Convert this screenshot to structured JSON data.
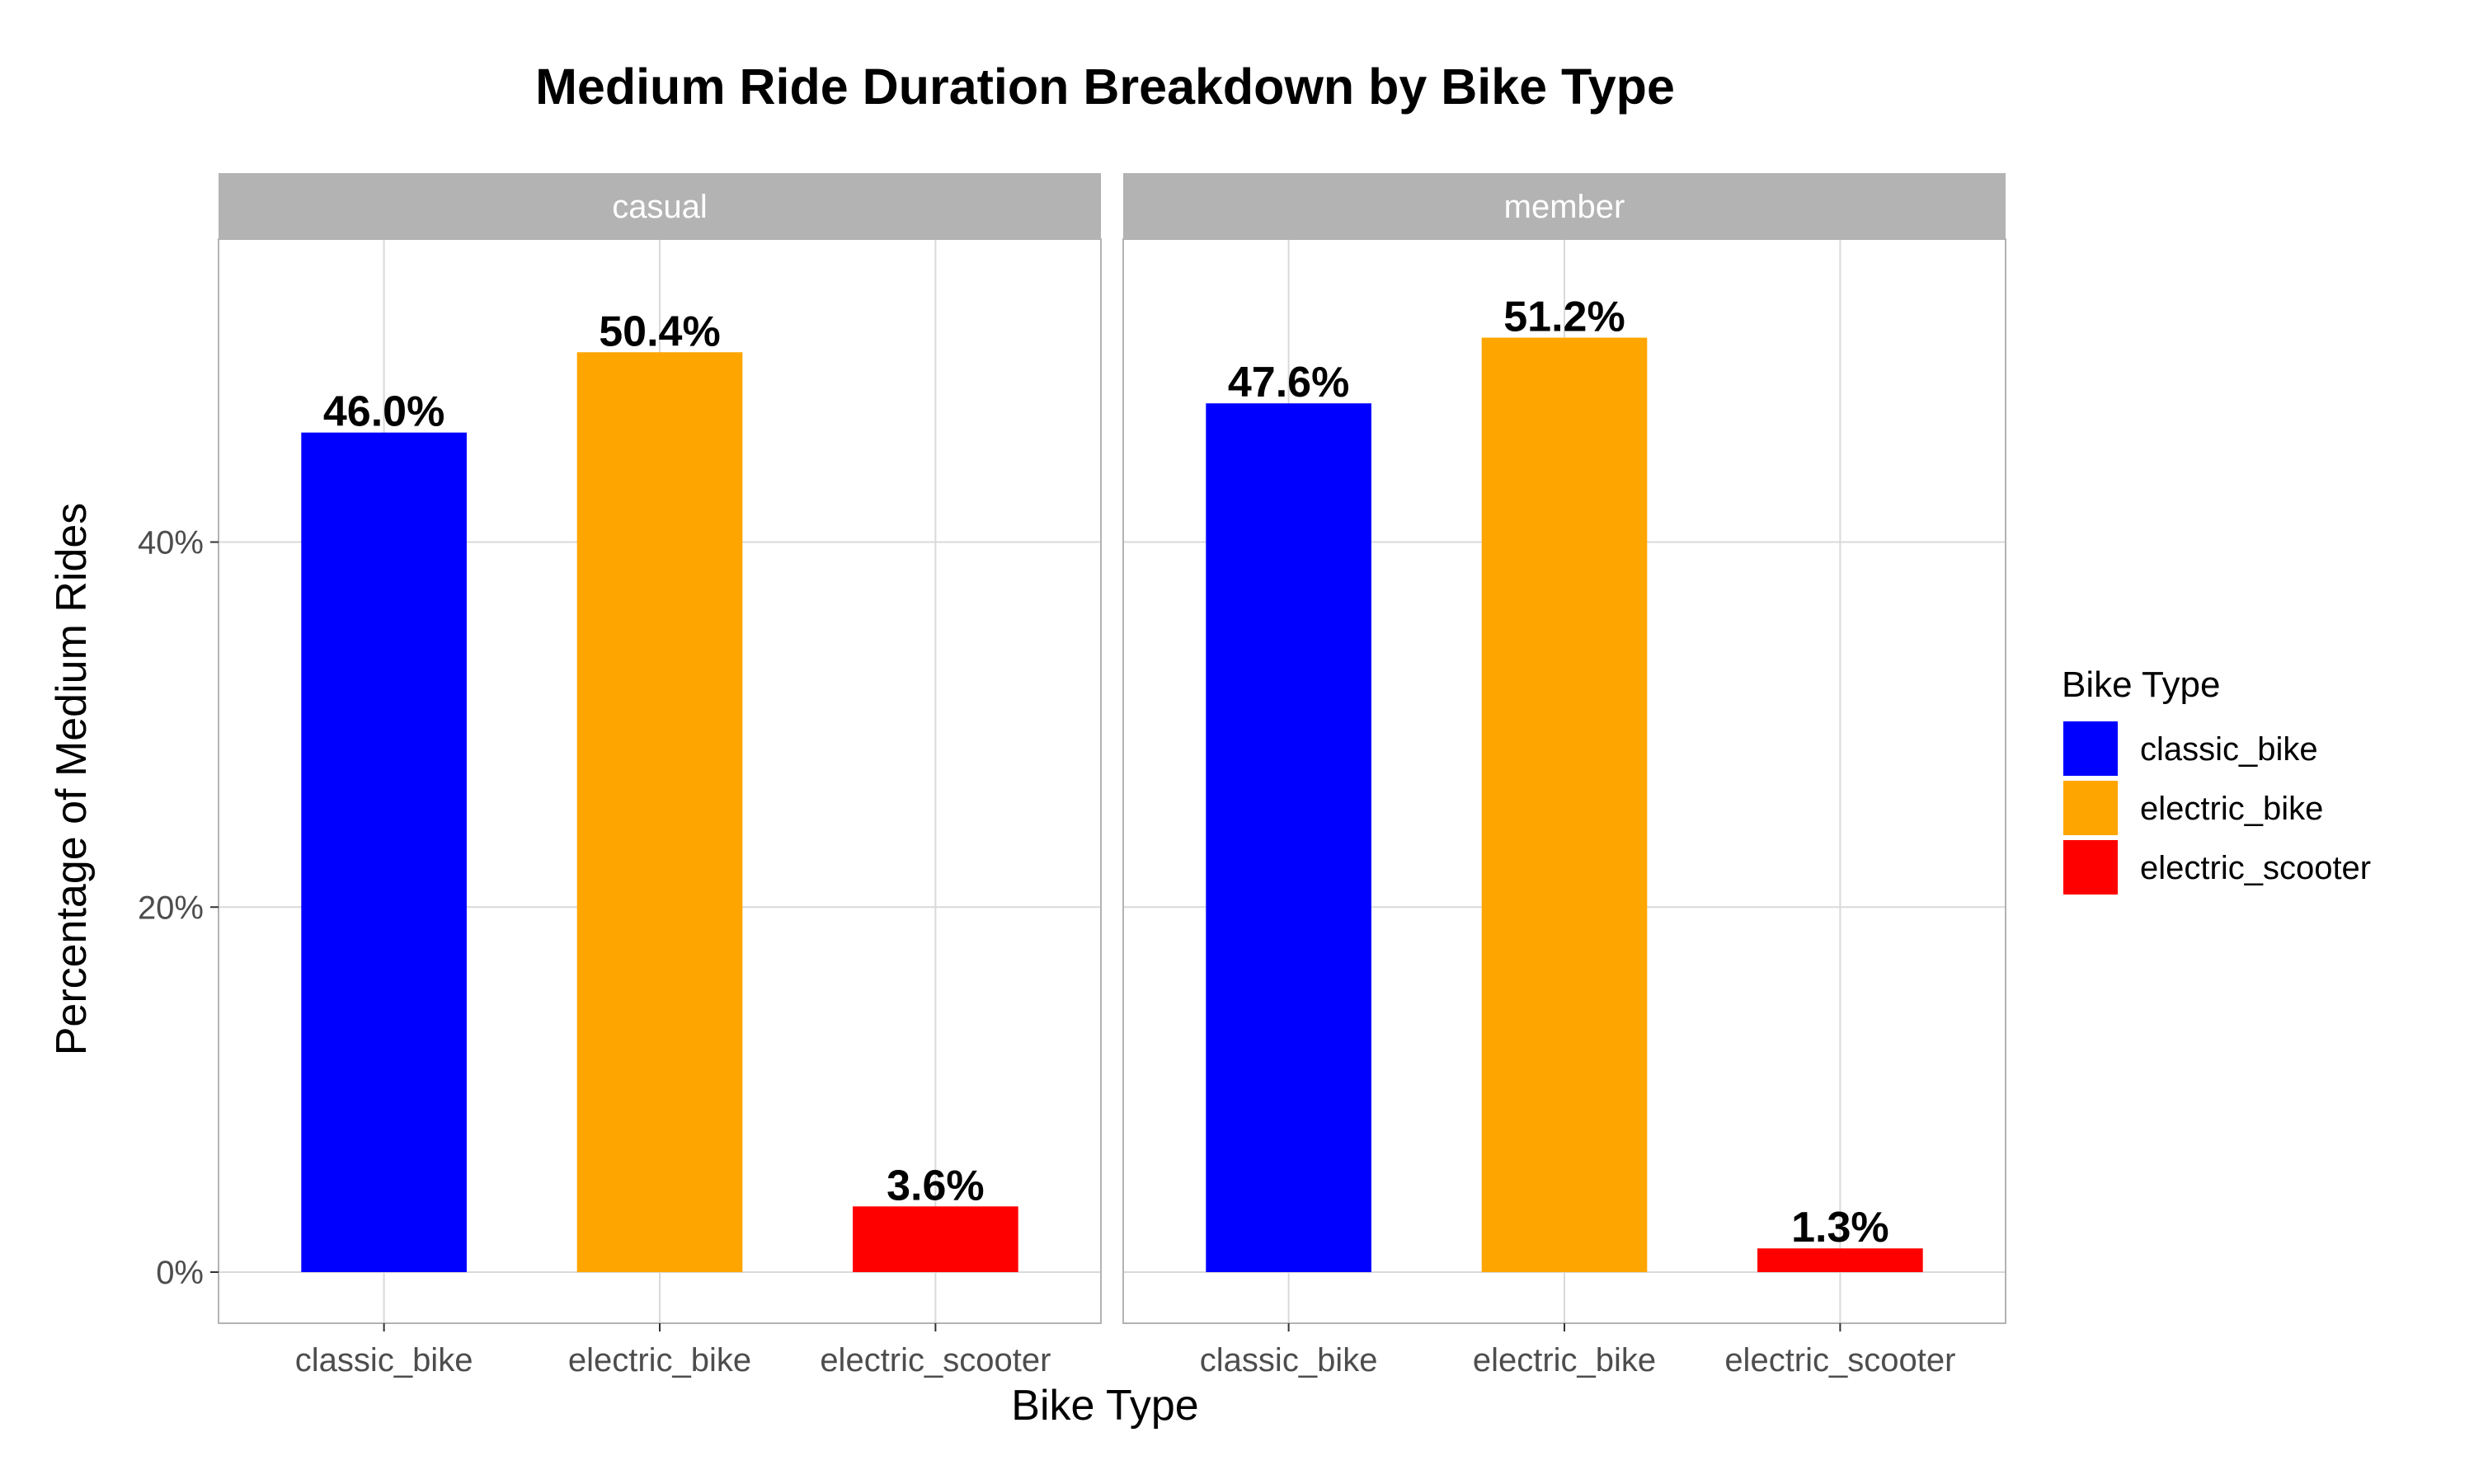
{
  "chart_data": {
    "type": "bar",
    "title": "Medium Ride Duration Breakdown by Bike Type",
    "xlabel": "Bike Type",
    "ylabel": "Percentage of Medium Rides",
    "categories": [
      "classic_bike",
      "electric_bike",
      "electric_scooter"
    ],
    "yticks": [
      0,
      20,
      40
    ],
    "ytick_labels": [
      "0%",
      "20%",
      "40%"
    ],
    "ylim": [
      -2.8,
      56.6
    ],
    "grid": true,
    "facets": [
      {
        "name": "casual",
        "values": [
          46.0,
          50.4,
          3.6
        ],
        "labels": [
          "46.0%",
          "50.4%",
          "3.6%"
        ]
      },
      {
        "name": "member",
        "values": [
          47.6,
          51.2,
          1.3
        ],
        "labels": [
          "47.6%",
          "51.2%",
          "1.3%"
        ]
      }
    ],
    "legend": {
      "title": "Bike Type",
      "position": "right",
      "items": [
        {
          "label": "classic_bike",
          "color": "#0000ff"
        },
        {
          "label": "electric_bike",
          "color": "#ffa500"
        },
        {
          "label": "electric_scooter",
          "color": "#ff0000"
        }
      ]
    },
    "colors": {
      "classic_bike": "#0000ff",
      "electric_bike": "#ffa500",
      "electric_scooter": "#ff0000",
      "strip_background": "#b3b3b3",
      "grid": "#d9d9d9",
      "panel_border": "#b3b3b3"
    }
  }
}
